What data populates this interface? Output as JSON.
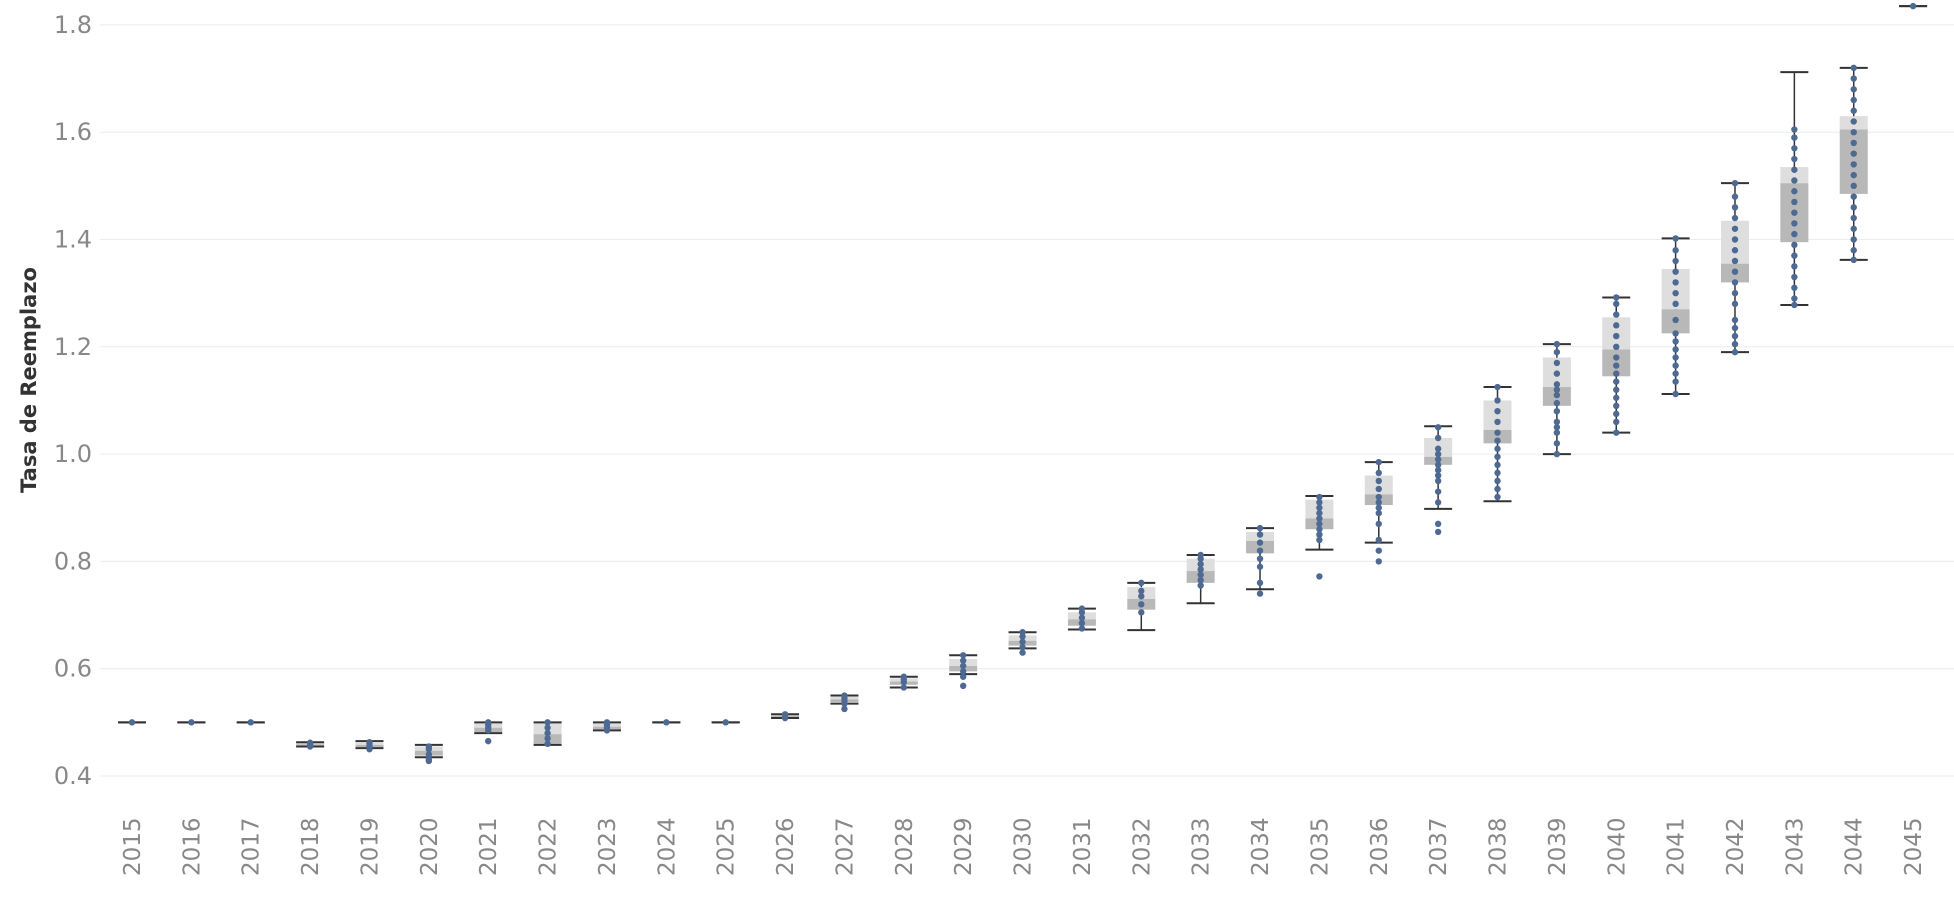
{
  "chart_data": {
    "type": "box",
    "title": "",
    "xlabel": "",
    "ylabel": "Tasa de Reemplazo",
    "ylim": [
      0.35,
      1.85
    ],
    "yticks": [
      "0.4",
      "0.6",
      "0.8",
      "1.0",
      "1.2",
      "1.4",
      "1.6",
      "1.8"
    ],
    "grid": true,
    "colors": {
      "dots": "#4e6a93",
      "whisker": "#333333",
      "box_lower": "#b8b8b8",
      "box_upper": "#dedede",
      "grid": "#ececec",
      "tick_text": "#888888"
    },
    "categories": [
      "2015",
      "2016",
      "2017",
      "2018",
      "2019",
      "2020",
      "2021",
      "2022",
      "2023",
      "2024",
      "2025",
      "2026",
      "2027",
      "2028",
      "2029",
      "2030",
      "2031",
      "2032",
      "2033",
      "2034",
      "2035",
      "2036",
      "2037",
      "2038",
      "2039",
      "2040",
      "2041",
      "2042",
      "2043",
      "2044",
      "2045"
    ],
    "boxes": [
      {
        "min": 0.5,
        "q1": 0.5,
        "median": 0.5,
        "q3": 0.5,
        "max": 0.5
      },
      {
        "min": 0.5,
        "q1": 0.5,
        "median": 0.5,
        "q3": 0.5,
        "max": 0.5
      },
      {
        "min": 0.5,
        "q1": 0.5,
        "median": 0.5,
        "q3": 0.5,
        "max": 0.5
      },
      {
        "min": 0.455,
        "q1": 0.457,
        "median": 0.459,
        "q3": 0.462,
        "max": 0.463
      },
      {
        "min": 0.452,
        "q1": 0.454,
        "median": 0.458,
        "q3": 0.462,
        "max": 0.465
      },
      {
        "min": 0.435,
        "q1": 0.438,
        "median": 0.447,
        "q3": 0.455,
        "max": 0.458
      },
      {
        "min": 0.48,
        "q1": 0.482,
        "median": 0.49,
        "q3": 0.498,
        "max": 0.5
      },
      {
        "min": 0.458,
        "q1": 0.46,
        "median": 0.478,
        "q3": 0.5,
        "max": 0.5
      },
      {
        "min": 0.485,
        "q1": 0.487,
        "median": 0.492,
        "q3": 0.498,
        "max": 0.5
      },
      {
        "min": 0.5,
        "q1": 0.5,
        "median": 0.5,
        "q3": 0.5,
        "max": 0.5
      },
      {
        "min": 0.5,
        "q1": 0.5,
        "median": 0.5,
        "q3": 0.5,
        "max": 0.5
      },
      {
        "min": 0.508,
        "q1": 0.51,
        "median": 0.512,
        "q3": 0.514,
        "max": 0.515
      },
      {
        "min": 0.535,
        "q1": 0.538,
        "median": 0.543,
        "q3": 0.548,
        "max": 0.55
      },
      {
        "min": 0.565,
        "q1": 0.57,
        "median": 0.576,
        "q3": 0.582,
        "max": 0.585
      },
      {
        "min": 0.59,
        "q1": 0.595,
        "median": 0.605,
        "q3": 0.618,
        "max": 0.625
      },
      {
        "min": 0.638,
        "q1": 0.643,
        "median": 0.652,
        "q3": 0.662,
        "max": 0.668
      },
      {
        "min": 0.673,
        "q1": 0.68,
        "median": 0.692,
        "q3": 0.705,
        "max": 0.712
      },
      {
        "min": 0.672,
        "q1": 0.71,
        "median": 0.73,
        "q3": 0.752,
        "max": 0.76
      },
      {
        "min": 0.722,
        "q1": 0.76,
        "median": 0.782,
        "q3": 0.805,
        "max": 0.812
      },
      {
        "min": 0.748,
        "q1": 0.815,
        "median": 0.838,
        "q3": 0.855,
        "max": 0.862
      },
      {
        "min": 0.822,
        "q1": 0.86,
        "median": 0.88,
        "q3": 0.915,
        "max": 0.922
      },
      {
        "min": 0.835,
        "q1": 0.905,
        "median": 0.925,
        "q3": 0.96,
        "max": 0.985
      },
      {
        "min": 0.898,
        "q1": 0.98,
        "median": 0.995,
        "q3": 1.03,
        "max": 1.052
      },
      {
        "min": 0.912,
        "q1": 1.02,
        "median": 1.045,
        "q3": 1.1,
        "max": 1.125
      },
      {
        "min": 1.0,
        "q1": 1.09,
        "median": 1.125,
        "q3": 1.18,
        "max": 1.205
      },
      {
        "min": 1.04,
        "q1": 1.145,
        "median": 1.195,
        "q3": 1.255,
        "max": 1.292
      },
      {
        "min": 1.112,
        "q1": 1.225,
        "median": 1.27,
        "q3": 1.345,
        "max": 1.402
      },
      {
        "min": 1.19,
        "q1": 1.32,
        "median": 1.355,
        "q3": 1.435,
        "max": 1.505
      },
      {
        "min": 1.278,
        "q1": 1.395,
        "median": 1.505,
        "q3": 1.535,
        "max": 1.712
      },
      {
        "min": 1.362,
        "q1": 1.485,
        "median": 1.605,
        "q3": 1.63,
        "max": 1.72
      },
      {
        "min": 1.835,
        "q1": 1.835,
        "median": 1.835,
        "q3": 1.835,
        "max": 1.835
      }
    ],
    "points": [
      [
        0.5
      ],
      [
        0.5
      ],
      [
        0.5
      ],
      [
        0.455,
        0.458,
        0.46,
        0.462
      ],
      [
        0.45,
        0.455,
        0.46,
        0.463
      ],
      [
        0.428,
        0.432,
        0.44,
        0.45,
        0.455
      ],
      [
        0.465,
        0.485,
        0.49,
        0.495,
        0.5
      ],
      [
        0.46,
        0.47,
        0.48,
        0.49,
        0.5
      ],
      [
        0.485,
        0.49,
        0.495,
        0.5
      ],
      [
        0.5
      ],
      [
        0.5
      ],
      [
        0.508,
        0.512,
        0.515
      ],
      [
        0.525,
        0.535,
        0.54,
        0.545,
        0.55
      ],
      [
        0.565,
        0.575,
        0.58,
        0.585
      ],
      [
        0.568,
        0.585,
        0.595,
        0.605,
        0.615,
        0.625
      ],
      [
        0.63,
        0.64,
        0.65,
        0.66,
        0.668
      ],
      [
        0.675,
        0.685,
        0.695,
        0.705,
        0.712
      ],
      [
        0.705,
        0.72,
        0.735,
        0.745,
        0.76
      ],
      [
        0.755,
        0.765,
        0.775,
        0.785,
        0.795,
        0.805,
        0.812
      ],
      [
        0.74,
        0.76,
        0.79,
        0.805,
        0.82,
        0.835,
        0.85,
        0.862
      ],
      [
        0.772,
        0.84,
        0.85,
        0.86,
        0.87,
        0.88,
        0.89,
        0.9,
        0.91,
        0.92
      ],
      [
        0.8,
        0.82,
        0.84,
        0.87,
        0.89,
        0.9,
        0.91,
        0.92,
        0.935,
        0.95,
        0.965,
        0.985
      ],
      [
        0.855,
        0.87,
        0.91,
        0.93,
        0.95,
        0.96,
        0.97,
        0.98,
        0.99,
        1.0,
        1.01,
        1.03,
        1.05
      ],
      [
        0.92,
        0.935,
        0.95,
        0.965,
        0.98,
        0.995,
        1.01,
        1.025,
        1.04,
        1.06,
        1.08,
        1.1,
        1.125
      ],
      [
        1.0,
        1.02,
        1.04,
        1.05,
        1.06,
        1.08,
        1.095,
        1.11,
        1.12,
        1.13,
        1.15,
        1.17,
        1.19,
        1.205
      ],
      [
        1.04,
        1.06,
        1.075,
        1.09,
        1.105,
        1.12,
        1.135,
        1.15,
        1.165,
        1.18,
        1.2,
        1.22,
        1.24,
        1.26,
        1.28,
        1.292
      ],
      [
        1.112,
        1.135,
        1.15,
        1.165,
        1.18,
        1.195,
        1.21,
        1.225,
        1.25,
        1.28,
        1.3,
        1.32,
        1.34,
        1.36,
        1.38,
        1.402
      ],
      [
        1.19,
        1.205,
        1.22,
        1.235,
        1.25,
        1.28,
        1.3,
        1.32,
        1.34,
        1.36,
        1.38,
        1.4,
        1.42,
        1.44,
        1.46,
        1.48,
        1.505
      ],
      [
        1.278,
        1.29,
        1.31,
        1.33,
        1.35,
        1.37,
        1.39,
        1.41,
        1.43,
        1.45,
        1.47,
        1.49,
        1.51,
        1.53,
        1.55,
        1.57,
        1.59,
        1.605
      ],
      [
        1.362,
        1.38,
        1.4,
        1.42,
        1.44,
        1.46,
        1.48,
        1.5,
        1.52,
        1.54,
        1.56,
        1.58,
        1.6,
        1.62,
        1.64,
        1.66,
        1.68,
        1.7,
        1.72
      ],
      [
        1.835
      ]
    ]
  }
}
